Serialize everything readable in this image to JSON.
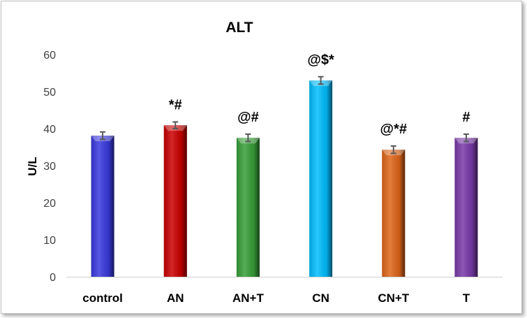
{
  "chart_data": {
    "type": "bar",
    "title": "ALT",
    "xlabel": "",
    "ylabel": "U/L",
    "ylim": [
      0,
      60
    ],
    "yticks": [
      0,
      10,
      20,
      30,
      40,
      50,
      60
    ],
    "grid": false,
    "categories": [
      "control",
      "AN",
      "AN+T",
      "CN",
      "CN+T",
      "T"
    ],
    "values": [
      38.1,
      40.9,
      37.5,
      53.0,
      34.3,
      37.5
    ],
    "errors": [
      1.0,
      0.9,
      1.0,
      1.0,
      1.0,
      1.0
    ],
    "annotations": [
      "",
      "*#",
      "@#",
      "@$*",
      "@*#",
      "#"
    ],
    "colors": [
      "#3a3ae0",
      "#cc0000",
      "#38a038",
      "#00bfff",
      "#e0661a",
      "#7a3aaa"
    ]
  }
}
